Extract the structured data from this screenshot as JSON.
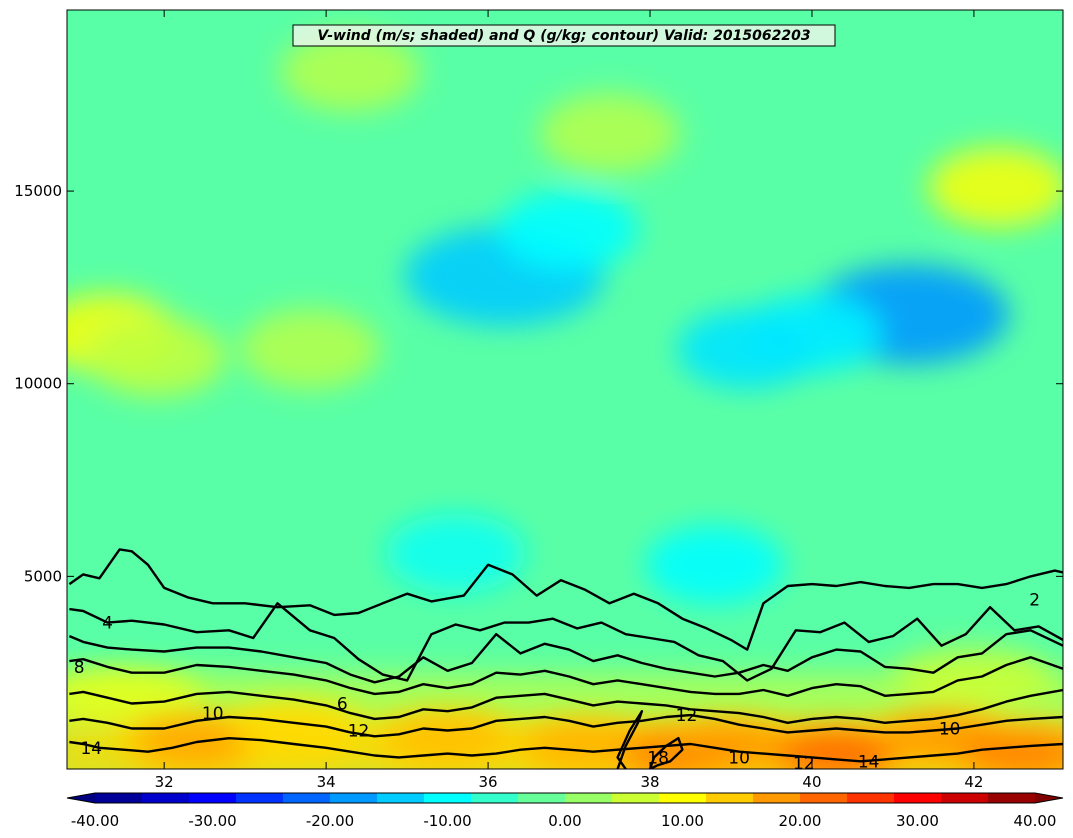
{
  "chart_data": {
    "type": "heatmap",
    "title": "V-wind (m/s; shaded) and Q (g/kg; contour) Valid: 2015062203",
    "xlabel": "",
    "ylabel": "",
    "xlim": [
      30.8,
      43.1
    ],
    "ylim": [
      0,
      19700
    ],
    "x_ticks": [
      "32",
      "34",
      "36",
      "38",
      "40",
      "42"
    ],
    "x_tick_values": [
      32,
      34,
      36,
      38,
      40,
      42
    ],
    "y_ticks": [
      "5000",
      "10000",
      "15000"
    ],
    "y_tick_values": [
      5000,
      10000,
      15000
    ],
    "shaded_variable": "V-wind (m/s)",
    "contour_variable": "Q (g/kg)",
    "colorbar": {
      "min": -40,
      "max": 40,
      "step": 4,
      "tick_labels": [
        "-40.00",
        "-30.00",
        "-20.00",
        "-10.00",
        "0.00",
        "10.00",
        "20.00",
        "30.00",
        "40.00"
      ],
      "tick_values": [
        -40,
        -30,
        -20,
        -10,
        0,
        10,
        20,
        30,
        40
      ],
      "extend": "both",
      "colormap": "jet"
    },
    "wind_features": [
      {
        "x": 36.2,
        "y": 12800,
        "v": -14
      },
      {
        "x": 37.0,
        "y": 14000,
        "v": -10
      },
      {
        "x": 41.2,
        "y": 11800,
        "v": -18
      },
      {
        "x": 40.0,
        "y": 11300,
        "v": -11
      },
      {
        "x": 39.2,
        "y": 10900,
        "v": -12
      },
      {
        "x": 38.8,
        "y": 5300,
        "v": -10
      },
      {
        "x": 35.6,
        "y": 5600,
        "v": -9
      },
      {
        "x": 31.3,
        "y": 11300,
        "v": 9
      },
      {
        "x": 31.9,
        "y": 10700,
        "v": 5
      },
      {
        "x": 42.3,
        "y": 15100,
        "v": 9
      },
      {
        "x": 34.3,
        "y": 18100,
        "v": 4
      },
      {
        "x": 33.8,
        "y": 10900,
        "v": 4
      },
      {
        "x": 37.5,
        "y": 16500,
        "v": 4
      },
      {
        "x": 42.0,
        "y": 2400,
        "v": 5
      },
      {
        "x": 31.5,
        "y": 1800,
        "v": 9
      },
      {
        "x": 32.4,
        "y": 700,
        "v": 17
      },
      {
        "x": 33.6,
        "y": 1000,
        "v": 13
      },
      {
        "x": 35.5,
        "y": 800,
        "v": 15
      },
      {
        "x": 37.2,
        "y": 600,
        "v": 16
      },
      {
        "x": 38.4,
        "y": 400,
        "v": 20
      },
      {
        "x": 39.0,
        "y": 600,
        "v": 18
      },
      {
        "x": 40.3,
        "y": 400,
        "v": 22
      },
      {
        "x": 41.6,
        "y": 800,
        "v": 18
      },
      {
        "x": 42.6,
        "y": 400,
        "v": 20
      }
    ],
    "contour_levels": [
      2,
      4,
      6,
      8,
      10,
      12,
      14,
      16,
      18
    ],
    "contour_labels": [
      {
        "text": "2",
        "x": 42.75,
        "y": 4400
      },
      {
        "text": "4",
        "x": 31.3,
        "y": 3800
      },
      {
        "text": "6",
        "x": 34.2,
        "y": 1700
      },
      {
        "text": "8",
        "x": 30.95,
        "y": 2650
      },
      {
        "text": "10",
        "x": 32.6,
        "y": 1450
      },
      {
        "text": "10",
        "x": 39.1,
        "y": 300
      },
      {
        "text": "10",
        "x": 41.7,
        "y": 1050
      },
      {
        "text": "12",
        "x": 34.4,
        "y": 1000
      },
      {
        "text": "12",
        "x": 38.45,
        "y": 1400
      },
      {
        "text": "12",
        "x": 39.9,
        "y": 150
      },
      {
        "text": "14",
        "x": 31.1,
        "y": 550
      },
      {
        "text": "14",
        "x": 40.7,
        "y": 200
      },
      {
        "text": "18",
        "x": 38.1,
        "y": 300
      }
    ],
    "contours": [
      {
        "level": 2,
        "x": [
          30.83,
          31.0,
          31.2,
          31.45,
          31.6,
          31.8,
          32.0,
          32.3,
          32.6,
          33.0,
          33.4,
          33.8,
          34.1,
          34.4,
          34.7,
          35.0,
          35.3,
          35.7,
          36.0,
          36.3,
          36.6,
          36.9,
          37.2,
          37.5,
          37.8,
          38.1,
          38.4,
          38.7,
          39.0,
          39.2,
          39.4,
          39.7,
          40.0,
          40.3,
          40.6,
          40.9,
          41.2,
          41.5,
          41.8,
          42.1,
          42.4,
          42.7,
          43.0,
          43.1
        ],
        "y": [
          4800,
          5050,
          4950,
          5700,
          5650,
          5300,
          4700,
          4450,
          4300,
          4300,
          4200,
          4250,
          4000,
          4050,
          4300,
          4550,
          4350,
          4500,
          5300,
          5050,
          4500,
          4900,
          4650,
          4300,
          4550,
          4300,
          3900,
          3650,
          3350,
          3100,
          4300,
          4750,
          4800,
          4750,
          4850,
          4750,
          4700,
          4800,
          4800,
          4700,
          4800,
          5000,
          5150,
          5100
        ]
      },
      {
        "level": 4,
        "x": [
          30.83,
          31.0,
          31.3,
          31.6,
          32.0,
          32.4,
          32.8,
          33.1,
          33.4,
          33.8,
          34.1,
          34.4,
          34.7,
          35.0,
          35.3,
          35.6,
          35.9,
          36.2,
          36.5,
          36.8,
          37.1,
          37.4,
          37.7,
          38.0,
          38.3,
          38.6,
          38.9,
          39.2,
          39.5,
          39.8,
          40.1,
          40.4,
          40.7,
          41.0,
          41.3,
          41.6,
          41.9,
          42.2,
          42.5,
          42.8,
          43.1
        ],
        "y": [
          4150,
          4100,
          3800,
          3850,
          3750,
          3550,
          3600,
          3400,
          4300,
          3600,
          3400,
          2850,
          2450,
          2300,
          3500,
          3750,
          3600,
          3800,
          3800,
          3900,
          3650,
          3800,
          3500,
          3400,
          3300,
          2950,
          2800,
          2300,
          2600,
          3600,
          3550,
          3800,
          3300,
          3450,
          3900,
          3200,
          3500,
          4200,
          3600,
          3700,
          3350
        ]
      },
      {
        "level": 6,
        "x": [
          30.83,
          31.0,
          31.3,
          31.6,
          32.0,
          32.4,
          32.8,
          33.2,
          33.6,
          34.0,
          34.3,
          34.6,
          34.9,
          35.2,
          35.5,
          35.8,
          36.1,
          36.4,
          36.7,
          37.0,
          37.3,
          37.6,
          37.9,
          38.2,
          38.5,
          38.8,
          39.1,
          39.4,
          39.7,
          40.0,
          40.3,
          40.6,
          40.9,
          41.2,
          41.5,
          41.8,
          42.1,
          42.4,
          42.7,
          43.1
        ],
        "y": [
          3450,
          3300,
          3150,
          3100,
          3050,
          3150,
          3150,
          3050,
          2900,
          2750,
          2450,
          2250,
          2400,
          2900,
          2550,
          2750,
          3500,
          3000,
          3250,
          3100,
          2800,
          2950,
          2750,
          2600,
          2500,
          2400,
          2500,
          2700,
          2550,
          2900,
          3100,
          3050,
          2650,
          2600,
          2500,
          2900,
          3000,
          3500,
          3600,
          3200
        ]
      },
      {
        "level": 8,
        "x": [
          30.83,
          31.0,
          31.3,
          31.6,
          32.0,
          32.4,
          32.8,
          33.2,
          33.6,
          34.0,
          34.3,
          34.6,
          34.9,
          35.2,
          35.5,
          35.8,
          36.1,
          36.4,
          36.7,
          37.0,
          37.3,
          37.6,
          37.9,
          38.2,
          38.5,
          38.8,
          39.1,
          39.4,
          39.7,
          40.0,
          40.3,
          40.6,
          40.9,
          41.2,
          41.5,
          41.8,
          42.1,
          42.4,
          42.7,
          43.1
        ],
        "y": [
          2800,
          2850,
          2650,
          2500,
          2500,
          2700,
          2650,
          2550,
          2450,
          2300,
          2100,
          1950,
          2000,
          2200,
          2100,
          2200,
          2500,
          2450,
          2550,
          2400,
          2200,
          2300,
          2200,
          2100,
          2000,
          1950,
          1950,
          2050,
          1900,
          2100,
          2200,
          2150,
          1900,
          1950,
          2000,
          2300,
          2400,
          2700,
          2900,
          2600
        ]
      },
      {
        "level": 10,
        "x": [
          30.83,
          31.0,
          31.3,
          31.6,
          32.0,
          32.4,
          32.8,
          33.2,
          33.6,
          34.0,
          34.3,
          34.6,
          34.9,
          35.2,
          35.5,
          35.8,
          36.1,
          36.4,
          36.7,
          37.0,
          37.3,
          37.6,
          37.9,
          38.2,
          38.5,
          38.8,
          39.1,
          39.4,
          39.7,
          40.0,
          40.3,
          40.6,
          40.9,
          41.2,
          41.5,
          41.8,
          42.1,
          42.4,
          42.7,
          43.1
        ],
        "y": [
          1950,
          2000,
          1850,
          1700,
          1750,
          1950,
          2000,
          1900,
          1800,
          1650,
          1450,
          1300,
          1350,
          1550,
          1500,
          1600,
          1850,
          1900,
          1950,
          1800,
          1650,
          1750,
          1700,
          1650,
          1550,
          1500,
          1450,
          1350,
          1200,
          1300,
          1350,
          1300,
          1200,
          1250,
          1300,
          1400,
          1550,
          1750,
          1900,
          2050
        ]
      },
      {
        "level": 12,
        "x": [
          30.83,
          31.0,
          31.3,
          31.6,
          32.0,
          32.4,
          32.8,
          33.2,
          33.6,
          34.0,
          34.3,
          34.6,
          34.9,
          35.2,
          35.5,
          35.8,
          36.1,
          36.4,
          36.7,
          37.0,
          37.3,
          37.6,
          37.9,
          38.2,
          38.5,
          38.8,
          39.1,
          39.4,
          39.7,
          40.0,
          40.3,
          40.6,
          40.9,
          41.2,
          41.5,
          41.8,
          42.1,
          42.4,
          42.7,
          43.1
        ],
        "y": [
          1250,
          1300,
          1200,
          1050,
          1050,
          1250,
          1350,
          1300,
          1200,
          1100,
          950,
          850,
          900,
          1050,
          1000,
          1050,
          1250,
          1300,
          1350,
          1250,
          1100,
          1200,
          1250,
          1350,
          1400,
          1300,
          1150,
          1050,
          950,
          1000,
          1050,
          1000,
          950,
          950,
          1000,
          1050,
          1150,
          1250,
          1300,
          1350
        ]
      },
      {
        "level": 14,
        "x": [
          30.83,
          31.0,
          31.2,
          31.5,
          31.8,
          32.1,
          32.4,
          32.8,
          33.2,
          33.6,
          34.0,
          34.3,
          34.6,
          34.9,
          35.2,
          35.5,
          35.8,
          36.1,
          36.4,
          36.7,
          37.0,
          37.3,
          37.6,
          37.9,
          38.2,
          38.5,
          38.8,
          39.1,
          39.4,
          39.7,
          40.0,
          40.3,
          40.6,
          40.9,
          41.2,
          41.5,
          41.8,
          42.1,
          42.4,
          42.7,
          43.1
        ],
        "y": [
          700,
          650,
          550,
          500,
          450,
          550,
          700,
          800,
          750,
          650,
          550,
          450,
          350,
          300,
          350,
          400,
          350,
          400,
          500,
          550,
          500,
          450,
          500,
          550,
          600,
          650,
          550,
          450,
          400,
          350,
          300,
          250,
          200,
          250,
          300,
          350,
          400,
          500,
          550,
          600,
          650
        ]
      },
      {
        "level": 16,
        "x": [
          37.6,
          37.7,
          37.85,
          37.9,
          37.75,
          37.6,
          37.7
        ],
        "y": [
          0,
          600,
          1200,
          1500,
          1000,
          300,
          0
        ]
      },
      {
        "level": 18,
        "x": [
          38.0,
          38.05,
          38.2,
          38.35,
          38.4,
          38.25,
          38.1,
          38.0
        ],
        "y": [
          0,
          300,
          600,
          800,
          500,
          200,
          100,
          0
        ]
      }
    ]
  }
}
